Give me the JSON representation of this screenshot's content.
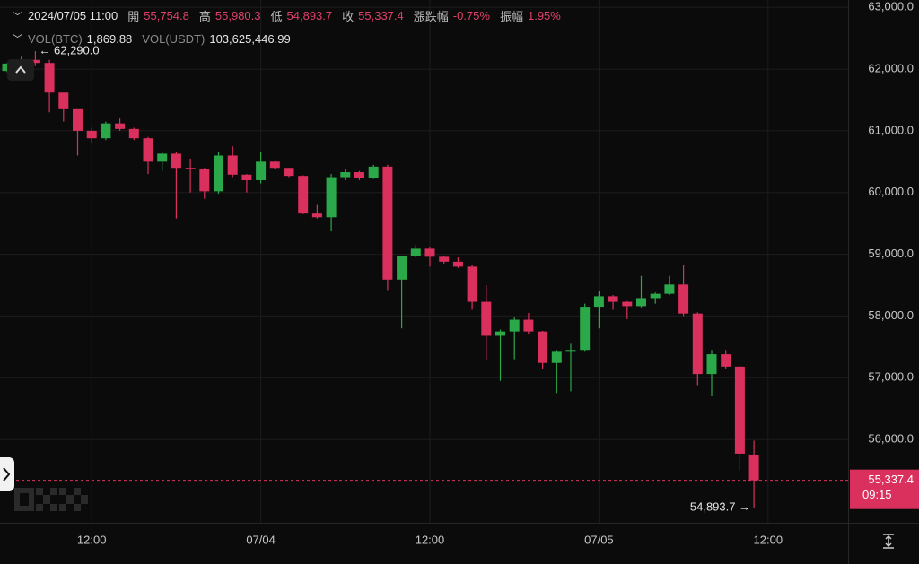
{
  "chart_data": {
    "type": "candlestick",
    "header": {
      "time": "2024/07/05 11:00",
      "fields": [
        {
          "label": "開",
          "value": "55,754.8"
        },
        {
          "label": "高",
          "value": "55,980.3"
        },
        {
          "label": "低",
          "value": "54,893.7"
        },
        {
          "label": "收",
          "value": "55,337.4"
        },
        {
          "label": "漲跌幅",
          "value": "-0.75%"
        },
        {
          "label": "振幅",
          "value": "1.95%"
        }
      ]
    },
    "volume_header": [
      {
        "label": "VOL(BTC)",
        "value": "1,869.88"
      },
      {
        "label": "VOL(USDT)",
        "value": "103,625,446.99"
      }
    ],
    "categories": [
      null,
      null,
      null,
      null,
      null,
      null,
      "12:00",
      null,
      null,
      null,
      null,
      null,
      null,
      null,
      null,
      null,
      null,
      null,
      "07/04",
      null,
      null,
      null,
      null,
      null,
      null,
      null,
      null,
      null,
      null,
      null,
      "12:00",
      null,
      null,
      null,
      null,
      null,
      null,
      null,
      null,
      null,
      null,
      null,
      "07/05",
      null,
      null,
      null,
      null,
      null,
      null,
      null,
      null,
      null,
      null,
      null,
      "12:00"
    ],
    "open": [
      61970,
      62090,
      62150,
      62100,
      61620,
      61350,
      61000,
      60880,
      61120,
      61030,
      60880,
      60500,
      60630,
      60400,
      60380,
      60020,
      60600,
      60290,
      60200,
      60500,
      60400,
      60270,
      59660,
      59600,
      60250,
      60330,
      60240,
      60420,
      58590,
      58970,
      59090,
      58960,
      58880,
      58800,
      58230,
      57680,
      57750,
      57940,
      57750,
      57240,
      57420,
      57450,
      58150,
      58320,
      58230,
      58160,
      58290,
      58360,
      58510,
      58040,
      57060,
      57380,
      57180,
      55754.8,
      null
    ],
    "high": [
      62100,
      62200,
      62290,
      62150,
      61620,
      61350,
      61050,
      61150,
      61200,
      61050,
      60900,
      60650,
      60650,
      60550,
      60400,
      60650,
      60750,
      60300,
      60650,
      60520,
      60400,
      60280,
      59800,
      60300,
      60380,
      60350,
      60450,
      60450,
      58980,
      59150,
      59120,
      58980,
      58950,
      58820,
      58500,
      57780,
      57980,
      58050,
      57760,
      57450,
      57550,
      58200,
      58400,
      58340,
      58240,
      58650,
      58380,
      58650,
      58820,
      58060,
      57450,
      57450,
      57200,
      55980.3,
      null
    ],
    "low": [
      61950,
      62050,
      62050,
      61300,
      61150,
      60600,
      60800,
      60850,
      61000,
      60850,
      60300,
      60350,
      59580,
      60000,
      59900,
      59980,
      60250,
      60000,
      60150,
      60380,
      60250,
      59650,
      59580,
      59370,
      60200,
      60200,
      60220,
      58420,
      57800,
      58950,
      58800,
      58850,
      58780,
      58100,
      57280,
      56950,
      57300,
      57700,
      57150,
      56750,
      56780,
      57420,
      57800,
      58100,
      57950,
      58140,
      58200,
      58340,
      58000,
      56880,
      56700,
      57150,
      55500,
      54893.7,
      null
    ],
    "close": [
      62090,
      62150,
      62100,
      61620,
      61350,
      61000,
      60880,
      61120,
      61030,
      60880,
      60500,
      60630,
      60400,
      60380,
      60020,
      60600,
      60290,
      60200,
      60500,
      60400,
      60270,
      59660,
      59600,
      60250,
      60330,
      60240,
      60420,
      58590,
      58970,
      59090,
      58960,
      58880,
      58800,
      58230,
      57680,
      57750,
      57940,
      57750,
      57240,
      57420,
      57450,
      58150,
      58320,
      58230,
      58160,
      58290,
      58360,
      58510,
      58040,
      57060,
      57380,
      57180,
      55770,
      55337.4,
      null
    ],
    "up_color": "#2ba84a",
    "down_color": "#d9305e",
    "ylim": [
      54650,
      63120
    ],
    "yticks": [
      {
        "value": 56000,
        "label": "56,000.0"
      },
      {
        "value": 57000,
        "label": "57,000.0"
      },
      {
        "value": 58000,
        "label": "58,000.0"
      },
      {
        "value": 59000,
        "label": "59,000.0"
      },
      {
        "value": 60000,
        "label": "60,000.0"
      },
      {
        "value": 61000,
        "label": "61,000.0"
      },
      {
        "value": 62000,
        "label": "62,000.0"
      },
      {
        "value": 63000,
        "label": "63,000.0"
      }
    ],
    "grid": true,
    "last_price": {
      "value": 55337.4,
      "label": "55,337.4",
      "countdown": "09:15"
    },
    "high_marker": "← 62,290.0",
    "low_marker": "54,893.7 →"
  }
}
